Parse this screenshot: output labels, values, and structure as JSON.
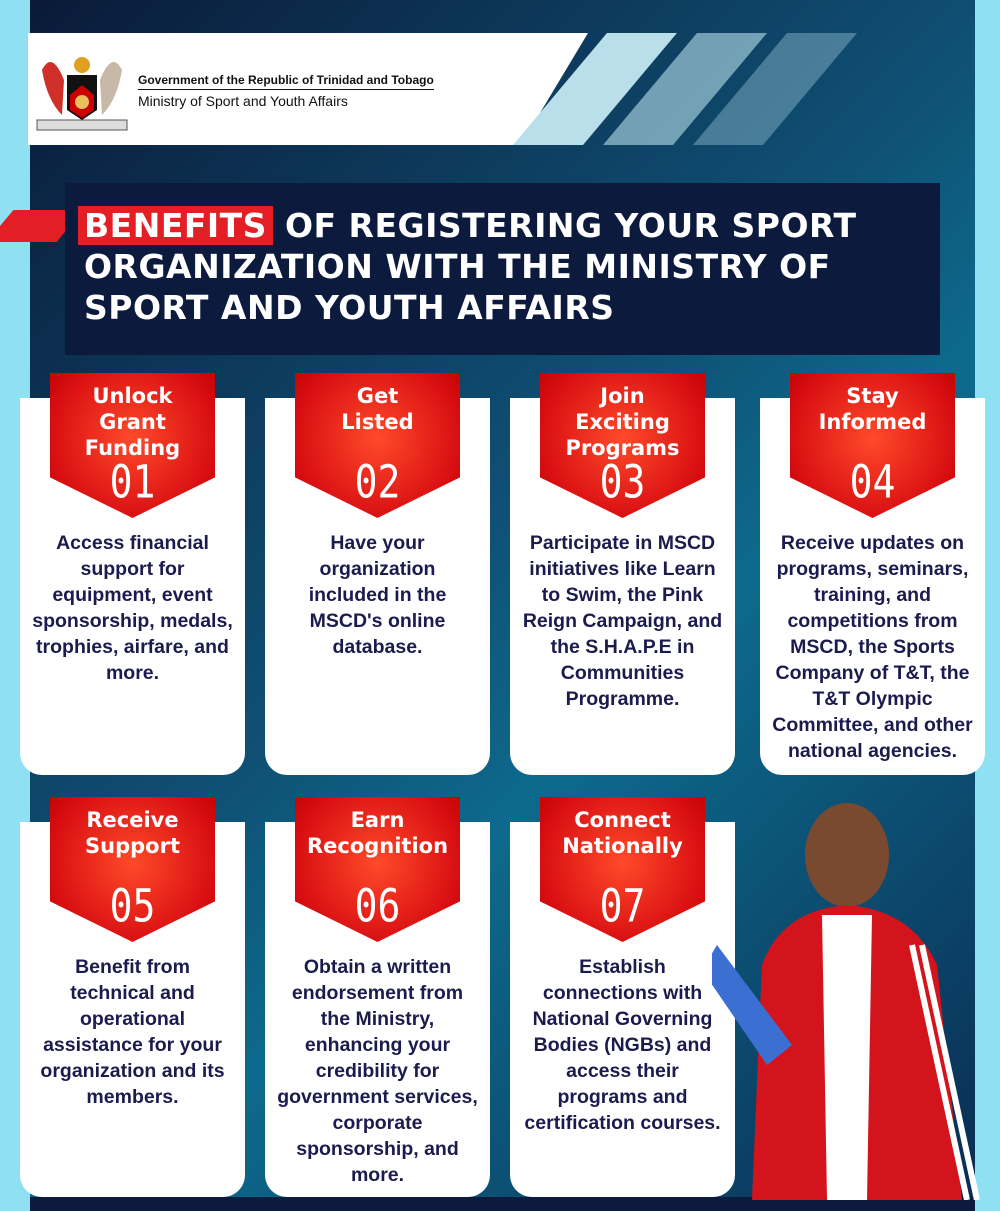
{
  "header": {
    "government": "Government of the Republic of Trinidad and Tobago",
    "ministry": "Ministry of Sport and Youth Affairs"
  },
  "title": {
    "highlight": "BENEFITS",
    "rest": " OF REGISTERING YOUR SPORT ORGANIZATION WITH THE MINISTRY OF SPORT AND YOUTH AFFAIRS"
  },
  "colors": {
    "accent_red": "#e31e24",
    "navy": "#0b1a3d",
    "teal": "#0d6a8c",
    "cyan": "#8fe0f2",
    "text": "#1b1b4d"
  },
  "benefits": [
    {
      "title": "Unlock Grant Funding",
      "number": "01",
      "text": "Access financial support for equipment, event sponsorship, medals, trophies, airfare, and more."
    },
    {
      "title": "Get Listed",
      "number": "02",
      "text": "Have your organization included in the MSCD's online database."
    },
    {
      "title": "Join Exciting Programs",
      "number": "03",
      "text": "Participate in MSCD initiatives like Learn to Swim, the Pink Reign Campaign, and the S.H.A.P.E in Communities Programme."
    },
    {
      "title": "Stay Informed",
      "number": "04",
      "text": "Receive updates on programs, seminars, training, and competitions from MSCD, the Sports Company of T&T, the T&T Olympic Committee, and other national agencies."
    },
    {
      "title": "Receive Support",
      "number": "05",
      "text": "Benefit from technical and operational assistance for your organization and its members."
    },
    {
      "title": "Earn Recognition",
      "number": "06",
      "text": "Obtain a written endorsement from the Ministry, enhancing your credibility for government services, corporate sponsorship, and more."
    },
    {
      "title": "Connect Nationally",
      "number": "07",
      "text": "Establish connections with National Governing Bodies (NGBs) and access their programs and certification courses."
    }
  ]
}
